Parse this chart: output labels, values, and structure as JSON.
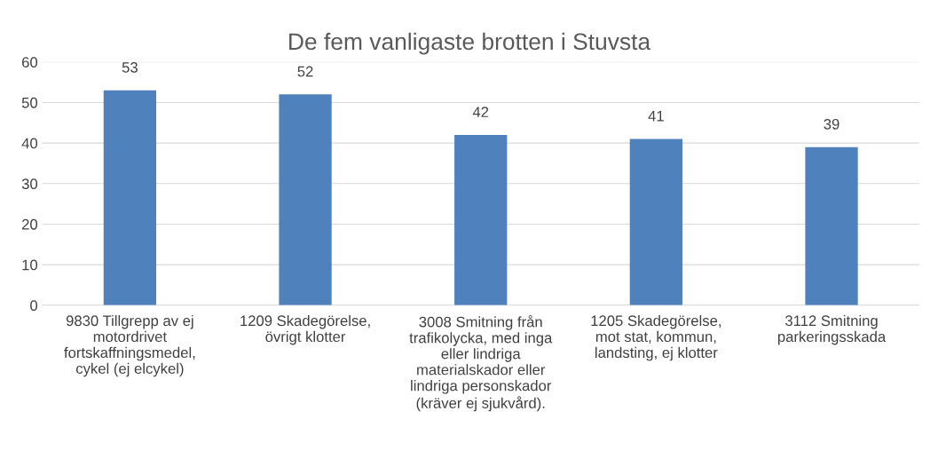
{
  "chart_data": {
    "type": "bar",
    "title": "De fem vanligaste brotten i Stuvsta",
    "categories": [
      "9830 Tillgrepp av ej\nmotordrivet\nfortskaffningsmedel,\ncykel (ej elcykel)",
      "1209 Skadegörelse,\növrigt klotter",
      "3008 Smitning från\ntrafikolycka, med inga\neller lindriga\nmaterialskador eller\nlindriga personskador\n(kräver ej sjukvård).",
      "1205 Skadegörelse,\nmot stat, kommun,\nlandsting, ej klotter",
      "3112 Smitning\nparkeringsskada"
    ],
    "values": [
      53,
      52,
      42,
      41,
      39
    ],
    "color": "#4f81bd",
    "ylim": [
      0,
      60
    ],
    "yticks": [
      0,
      10,
      20,
      30,
      40,
      50,
      60
    ],
    "grid": "y",
    "data_labels": true
  }
}
